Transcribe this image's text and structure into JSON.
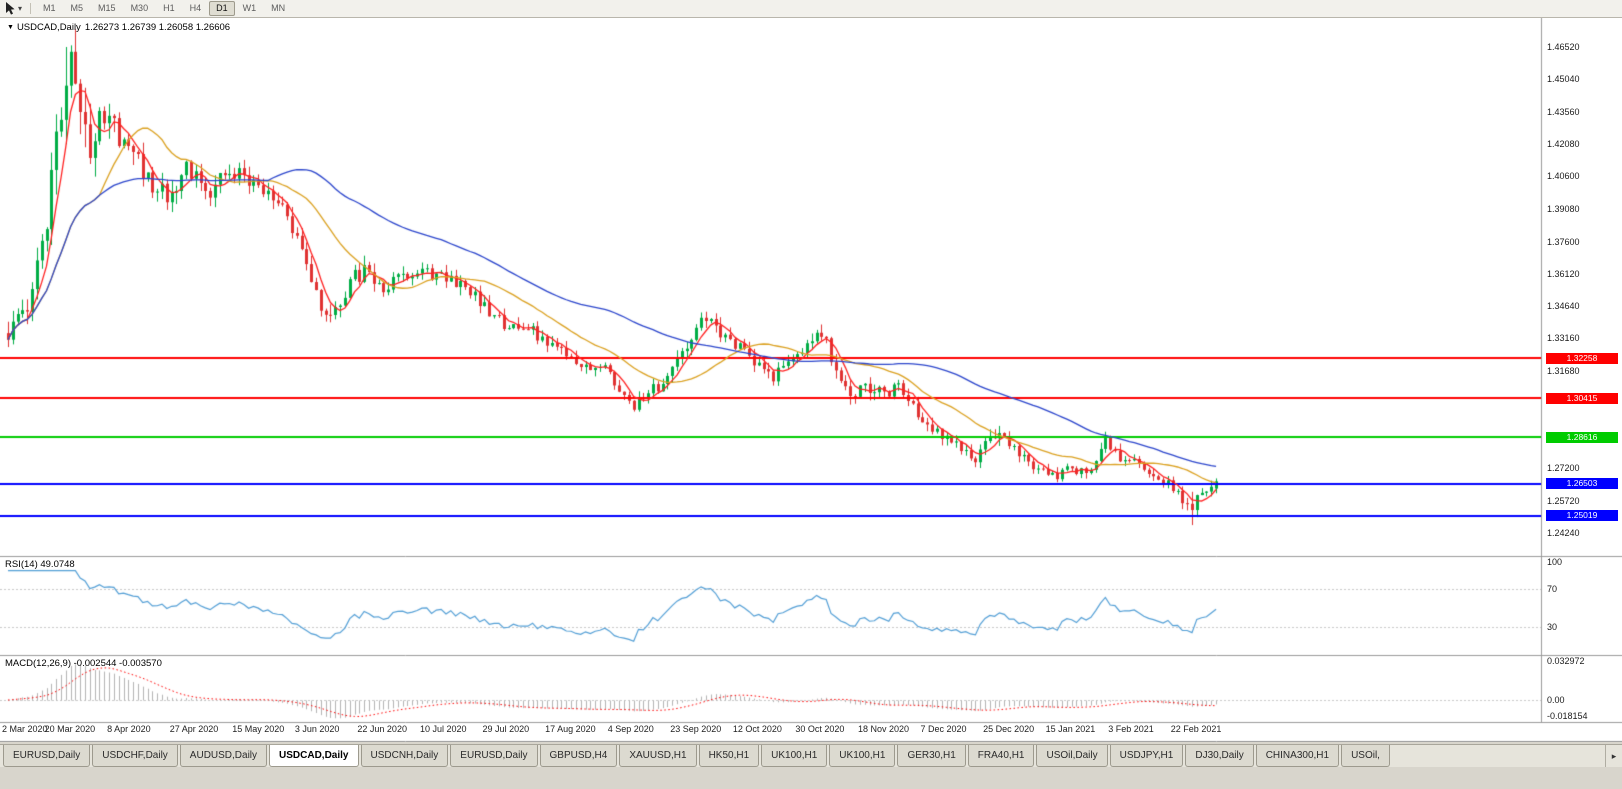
{
  "icons": {
    "collapse_triangle": "▼",
    "dropdown_caret": "▾",
    "tab_scroll_right": "▸"
  },
  "toolbar": {
    "timeframes": [
      "M1",
      "M5",
      "M15",
      "M30",
      "H1",
      "H4",
      "D1",
      "W1",
      "MN"
    ],
    "active_timeframe": "D1"
  },
  "chart": {
    "title_symbol": "USDCAD,Daily",
    "title_ohlc": "1.26273 1.26739 1.26058 1.26606"
  },
  "chart_data": {
    "type": "candlestick",
    "symbol": "USDCAD",
    "timeframe": "Daily",
    "ohlc_current": {
      "open": 1.26273,
      "high": 1.26739,
      "low": 1.26058,
      "close": 1.26606
    },
    "visible_price_range": [
      1.2319,
      1.4757
    ],
    "candle_count": 252,
    "price_anchors": [
      [
        0,
        1.334,
        0.01
      ],
      [
        3,
        1.34,
        0.011
      ],
      [
        6,
        1.362,
        0.015
      ],
      [
        9,
        1.4,
        0.02
      ],
      [
        11,
        1.438,
        0.024
      ],
      [
        13,
        1.453,
        0.026
      ],
      [
        15,
        1.442,
        0.022
      ],
      [
        17,
        1.421,
        0.019
      ],
      [
        19,
        1.439,
        0.017
      ],
      [
        22,
        1.429,
        0.014
      ],
      [
        26,
        1.415,
        0.012
      ],
      [
        30,
        1.403,
        0.011
      ],
      [
        34,
        1.396,
        0.01
      ],
      [
        37,
        1.409,
        0.01
      ],
      [
        39,
        1.405,
        0.009
      ],
      [
        42,
        1.396,
        0.009
      ],
      [
        45,
        1.409,
        0.009
      ],
      [
        48,
        1.407,
        0.008
      ],
      [
        52,
        1.4,
        0.008
      ],
      [
        55,
        1.397,
        0.008
      ],
      [
        58,
        1.386,
        0.008
      ],
      [
        61,
        1.371,
        0.008
      ],
      [
        63,
        1.356,
        0.008
      ],
      [
        65,
        1.346,
        0.009
      ],
      [
        67,
        1.3395,
        0.009
      ],
      [
        69,
        1.346,
        0.009
      ],
      [
        71,
        1.359,
        0.008
      ],
      [
        74,
        1.362,
        0.008
      ],
      [
        78,
        1.3555,
        0.007
      ],
      [
        82,
        1.3605,
        0.007
      ],
      [
        86,
        1.3645,
        0.007
      ],
      [
        89,
        1.3585,
        0.007
      ],
      [
        91,
        1.36,
        0.007
      ],
      [
        94,
        1.3555,
        0.007
      ],
      [
        97,
        1.3505,
        0.006
      ],
      [
        100,
        1.343,
        0.006
      ],
      [
        102,
        1.3405,
        0.006
      ],
      [
        104,
        1.3365,
        0.006
      ],
      [
        107,
        1.3385,
        0.006
      ],
      [
        110,
        1.3325,
        0.006
      ],
      [
        113,
        1.3285,
        0.006
      ],
      [
        117,
        1.3225,
        0.006
      ],
      [
        120,
        1.3185,
        0.006
      ],
      [
        123,
        1.3205,
        0.006
      ],
      [
        126,
        1.3125,
        0.006
      ],
      [
        128,
        1.3065,
        0.006
      ],
      [
        130,
        1.3005,
        0.006
      ],
      [
        133,
        1.306,
        0.006
      ],
      [
        136,
        1.312,
        0.006
      ],
      [
        139,
        1.32,
        0.007
      ],
      [
        141,
        1.33,
        0.007
      ],
      [
        143,
        1.3375,
        0.007
      ],
      [
        145,
        1.34,
        0.007
      ],
      [
        148,
        1.334,
        0.007
      ],
      [
        151,
        1.3285,
        0.007
      ],
      [
        154,
        1.324,
        0.006
      ],
      [
        156,
        1.3185,
        0.006
      ],
      [
        159,
        1.3145,
        0.006
      ],
      [
        162,
        1.32,
        0.006
      ],
      [
        165,
        1.326,
        0.006
      ],
      [
        168,
        1.332,
        0.007
      ],
      [
        170,
        1.329,
        0.007
      ],
      [
        172,
        1.315,
        0.008
      ],
      [
        175,
        1.3065,
        0.008
      ],
      [
        178,
        1.31,
        0.007
      ],
      [
        182,
        1.306,
        0.006
      ],
      [
        185,
        1.3095,
        0.006
      ],
      [
        188,
        1.3,
        0.006
      ],
      [
        191,
        1.293,
        0.006
      ],
      [
        195,
        1.286,
        0.006
      ],
      [
        198,
        1.2805,
        0.005
      ],
      [
        201,
        1.277,
        0.005
      ],
      [
        204,
        1.285,
        0.006
      ],
      [
        206,
        1.2895,
        0.007
      ],
      [
        208,
        1.2825,
        0.006
      ],
      [
        211,
        1.276,
        0.005
      ],
      [
        214,
        1.2705,
        0.005
      ],
      [
        217,
        1.268,
        0.005
      ],
      [
        221,
        1.273,
        0.005
      ],
      [
        224,
        1.2685,
        0.005
      ],
      [
        226,
        1.275,
        0.006
      ],
      [
        228,
        1.2835,
        0.007
      ],
      [
        230,
        1.278,
        0.006
      ],
      [
        234,
        1.275,
        0.006
      ],
      [
        238,
        1.27,
        0.005
      ],
      [
        241,
        1.2645,
        0.005
      ],
      [
        244,
        1.2585,
        0.006
      ],
      [
        246,
        1.2505,
        0.01
      ],
      [
        248,
        1.2615,
        0.008
      ],
      [
        250,
        1.2655,
        0.006
      ],
      [
        251,
        1.2661,
        0.005
      ]
    ],
    "extremes": {
      "peak_index": 12,
      "peak_high": 1.4652,
      "trough_index": 246,
      "trough_low": 1.246
    },
    "last_candle": {
      "o": 1.26273,
      "h": 1.26739,
      "l": 1.26058,
      "c": 1.26606
    },
    "colors": {
      "bull": "#00ad45",
      "bear": "#e03232",
      "ma_fast": "#ff2020",
      "ma_mid": "#dba120",
      "ma_slow": "#2b45cc",
      "rsi": "#539fd6",
      "macd_hist": "#b4b4b4",
      "macd_signal": "#ff0000"
    },
    "moving_averages": [
      {
        "period": 5,
        "color_key": "ma_fast"
      },
      {
        "period": 20,
        "color_key": "ma_mid"
      },
      {
        "period": 55,
        "color_key": "ma_slow"
      }
    ],
    "hlines": [
      {
        "label": "1.32258",
        "price": 1.32258,
        "color": "#ff0000"
      },
      {
        "label": "1.30415",
        "price": 1.30415,
        "color": "#ff0000"
      },
      {
        "label": "1.28616",
        "price": 1.28616,
        "color": "#00cc00"
      },
      {
        "label": "1.26503",
        "price": 1.26503,
        "color": "#0000ff"
      },
      {
        "label": "1.25019",
        "price": 1.25019,
        "color": "#0000ff"
      }
    ],
    "price_axis_labels": [
      "1.46520",
      "1.45040",
      "1.43560",
      "1.42080",
      "1.40600",
      "1.39080",
      "1.37600",
      "1.36120",
      "1.34640",
      "1.33160",
      "1.31680",
      "1.27200",
      "1.25720",
      "1.24240"
    ],
    "date_labels": [
      "2 Mar 2020",
      "20 Mar 2020",
      "8 Apr 2020",
      "27 Apr 2020",
      "15 May 2020",
      "3 Jun 2020",
      "22 Jun 2020",
      "10 Jul 2020",
      "29 Jul 2020",
      "17 Aug 2020",
      "4 Sep 2020",
      "23 Sep 2020",
      "12 Oct 2020",
      "30 Oct 2020",
      "18 Nov 2020",
      "7 Dec 2020",
      "25 Dec 2020",
      "15 Jan 2021",
      "3 Feb 2021",
      "22 Feb 2021"
    ],
    "rsi": {
      "label": "RSI(14) 49.0748",
      "period": 14,
      "last_value": 49.0748,
      "levels": [
        70,
        30
      ],
      "axis_labels": [
        "100",
        "70",
        "30"
      ]
    },
    "macd": {
      "label": "MACD(12,26,9) -0.002544 -0.003570",
      "fast": 12,
      "slow": 26,
      "signal": 9,
      "values": {
        "macd": -0.002544,
        "signal": -0.00357
      },
      "axis_labels": [
        "0.032972",
        "0.00",
        "-0.018154"
      ],
      "scale_max": 0.032972,
      "scale_min": -0.018154
    }
  },
  "tabs": {
    "active_index": 3,
    "items": [
      "EURUSD,Daily",
      "USDCHF,Daily",
      "AUDUSD,Daily",
      "USDCAD,Daily",
      "USDCNH,Daily",
      "EURUSD,Daily",
      "GBPUSD,H4",
      "XAUUSD,H1",
      "HK50,H1",
      "UK100,H1",
      "UK100,H1",
      "GER30,H1",
      "FRA40,H1",
      "USOil,Daily",
      "USDJPY,H1",
      "DJ30,Daily",
      "CHINA300,H1",
      "USOil,"
    ]
  }
}
